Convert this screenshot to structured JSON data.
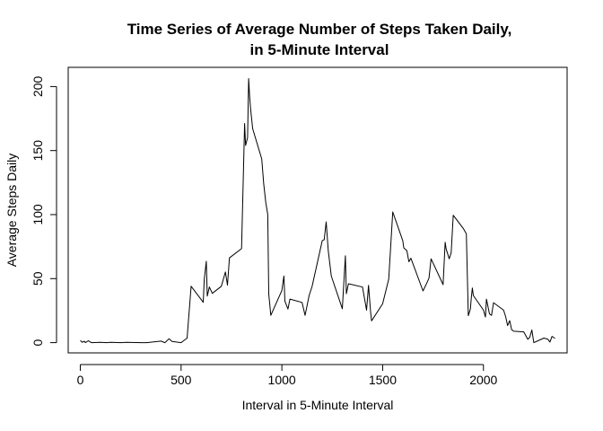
{
  "chart_data": {
    "type": "line",
    "title": [
      "Time Series of Average Number of Steps Taken Daily,",
      "in 5-Minute Interval"
    ],
    "xlabel": "Interval in 5-Minute Interval",
    "ylabel": "Average Steps Daily",
    "xlim": [
      -60,
      2415
    ],
    "ylim": [
      -8,
      215
    ],
    "xticks": [
      0,
      500,
      1000,
      1500,
      2000
    ],
    "yticks": [
      0,
      50,
      100,
      150,
      200
    ],
    "grid": false,
    "line_color": "#000000",
    "x": [
      0,
      10,
      20,
      25,
      40,
      55,
      100,
      130,
      150,
      200,
      230,
      300,
      330,
      400,
      420,
      440,
      455,
      500,
      515,
      530,
      550,
      610,
      615,
      625,
      630,
      640,
      655,
      700,
      720,
      730,
      740,
      800,
      815,
      820,
      830,
      835,
      840,
      845,
      855,
      900,
      910,
      920,
      930,
      935,
      940,
      945,
      1000,
      1010,
      1015,
      1030,
      1040,
      1100,
      1115,
      1135,
      1150,
      1200,
      1210,
      1220,
      1230,
      1245,
      1300,
      1315,
      1320,
      1330,
      1400,
      1420,
      1430,
      1440,
      1445,
      1500,
      1530,
      1550,
      1600,
      1605,
      1620,
      1630,
      1640,
      1700,
      1720,
      1730,
      1740,
      1800,
      1810,
      1815,
      1830,
      1840,
      1850,
      1900,
      1915,
      1925,
      1935,
      1940,
      1945,
      1950,
      2000,
      2010,
      2015,
      2030,
      2040,
      2050,
      2100,
      2110,
      2120,
      2130,
      2140,
      2150,
      2200,
      2220,
      2230,
      2240,
      2250,
      2300,
      2320,
      2330,
      2340,
      2355
    ],
    "y": [
      1.7,
      0.3,
      1.1,
      0.0,
      1.5,
      0.0,
      0.3,
      0.0,
      0.2,
      0.0,
      0.2,
      0.0,
      0.0,
      1.2,
      0.0,
      3.0,
      1.0,
      0.0,
      1.8,
      3.5,
      44.0,
      31.5,
      49.2,
      63.5,
      36.3,
      43.5,
      38.5,
      44.0,
      55.2,
      44.9,
      66.2,
      73.4,
      171.2,
      154.0,
      160.0,
      206.2,
      192.0,
      182.5,
      167.0,
      143.5,
      124.0,
      109.4,
      100.0,
      38.0,
      30.3,
      21.3,
      40.7,
      52.0,
      32.4,
      26.2,
      34.0,
      31.4,
      21.3,
      36.8,
      43.9,
      79.6,
      80.4,
      94.3,
      72.0,
      52.0,
      26.5,
      67.8,
      38.2,
      46.0,
      43.4,
      25.4,
      44.7,
      24.0,
      17.0,
      30.3,
      49.6,
      102.1,
      79.5,
      74.0,
      71.9,
      63.2,
      65.9,
      40.4,
      46.9,
      50.4,
      65.5,
      45.3,
      78.4,
      73.2,
      65.5,
      70.1,
      99.5,
      89.2,
      85.0,
      21.0,
      26.2,
      35.4,
      42.7,
      36.8,
      25.4,
      20.0,
      34.0,
      22.4,
      21.3,
      31.2,
      25.4,
      20.3,
      13.3,
      17.2,
      10.1,
      8.9,
      8.4,
      2.6,
      4.3,
      9.9,
      0.0,
      3.6,
      2.6,
      0.5,
      4.9,
      3.3
    ],
    "x_display": [
      0,
      2355
    ]
  }
}
